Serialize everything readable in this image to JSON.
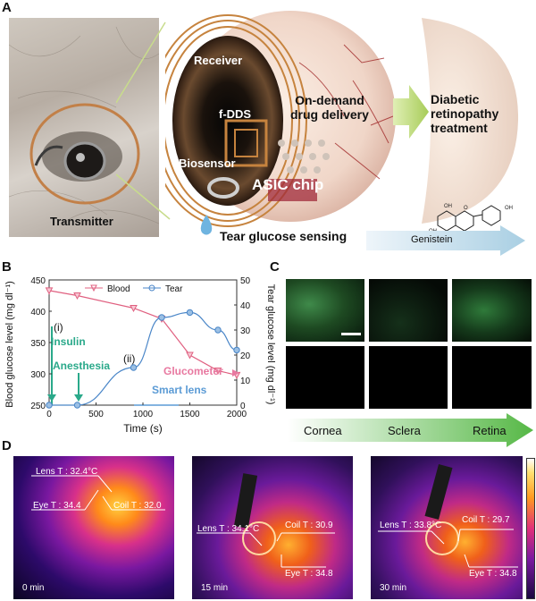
{
  "panelA": {
    "letter": "A",
    "labels": {
      "transmitter": "Transmitter",
      "receiver": "Receiver",
      "fdds": "f-DDS",
      "biosensor": "Biosensor",
      "asic": "ASIC chip",
      "ondemand": "On-demand\ndrug delivery",
      "diabetic": "Diabetic\nretinopathy\ntreatment",
      "tear_sensing": "Tear glucose sensing",
      "genistein": "Genistein",
      "mol_oh1": "OH",
      "mol_oh2": "OH",
      "mol_oh3": "OH",
      "mol_o1": "O",
      "mol_o2": "O"
    }
  },
  "panelB": {
    "letter": "B",
    "chart_data": {
      "type": "line",
      "xlabel": "Time (s)",
      "ylabel": "Blood glucose level (mg dl⁻¹)",
      "y2label": "Tear glucose level (mg dl⁻¹)",
      "xlim": [
        0,
        2000
      ],
      "ylim": [
        250,
        450
      ],
      "y2lim": [
        0,
        50
      ],
      "x_ticks": [
        "0",
        "500",
        "1000",
        "1500",
        "2000"
      ],
      "y_ticks": [
        "250",
        "300",
        "350",
        "400",
        "450"
      ],
      "y2_ticks": [
        "0",
        "10",
        "20",
        "30",
        "40",
        "50"
      ],
      "legend": [
        "Blood",
        "Tear"
      ],
      "legend_position": "top",
      "series": [
        {
          "name": "Blood",
          "axis": "left",
          "color": "#e06080",
          "marker": "triangle-down",
          "x": [
            0,
            300,
            900,
            1200,
            1500,
            1800,
            2000
          ],
          "y": [
            433,
            425,
            405,
            388,
            330,
            305,
            298
          ]
        },
        {
          "name": "Tear",
          "axis": "right",
          "color": "#4a86c8",
          "marker": "circle",
          "x": [
            0,
            300,
            900,
            1200,
            1500,
            1800,
            2000
          ],
          "y": [
            0,
            0,
            15,
            35,
            37,
            30,
            22
          ]
        }
      ],
      "annotations": {
        "i": "(i)",
        "ii": "(ii)",
        "insulin": "Insulin",
        "anesthesia": "Anesthesia",
        "glucometer": "Glucometer",
        "smartlens": "Smart lens"
      }
    },
    "colors": {
      "insulin": "#2aa98a",
      "glucometer": "#e878a0",
      "smartlens": "#5b9bd5"
    }
  },
  "panelC": {
    "letter": "C",
    "tissues": [
      "Cornea",
      "Sclera",
      "Retina"
    ]
  },
  "panelD": {
    "letter": "D",
    "frames": [
      {
        "time": "0 min",
        "lens": "Lens T : 32.4°C",
        "eye": "Eye T : 34.4",
        "coil": "Coil T : 32.0"
      },
      {
        "time": "15 min",
        "lens": "Lens T : 34.1°C",
        "eye": "Eye T : 34.8",
        "coil": "Coil T : 30.9"
      },
      {
        "time": "30 min",
        "lens": "Lens T : 33.8°C",
        "eye": "Eye T : 34.8",
        "coil": "Coil T : 29.7"
      }
    ]
  }
}
